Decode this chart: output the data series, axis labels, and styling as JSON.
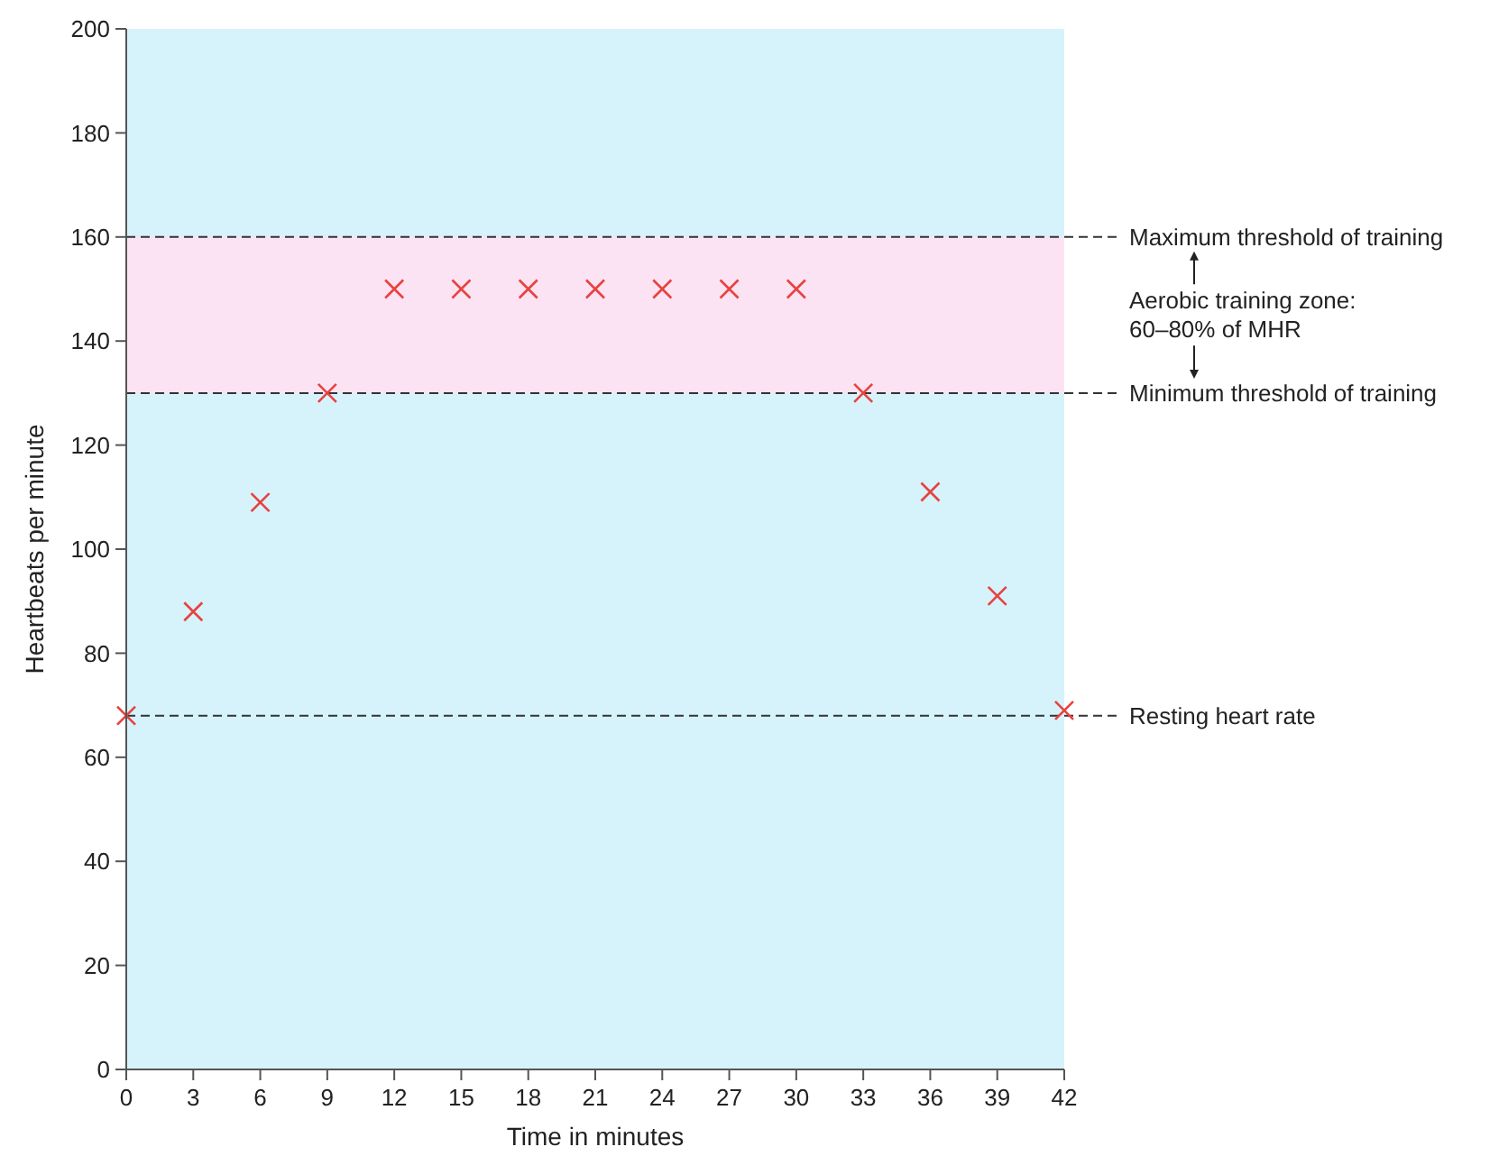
{
  "chart_data": {
    "type": "scatter",
    "xlabel": "Time in minutes",
    "ylabel": "Heartbeats per minute",
    "x": [
      0,
      3,
      6,
      9,
      12,
      15,
      18,
      21,
      24,
      27,
      30,
      33,
      36,
      39,
      42
    ],
    "series": [
      {
        "color": "#e8423f",
        "values": [
          68,
          88,
          109,
          130,
          150,
          150,
          150,
          150,
          150,
          150,
          150,
          130,
          111,
          91,
          69
        ]
      }
    ],
    "xlim": [
      0,
      42
    ],
    "xticks": [
      0,
      3,
      6,
      9,
      12,
      15,
      18,
      21,
      24,
      27,
      30,
      33,
      36,
      39,
      42
    ],
    "ylim": [
      0,
      200
    ],
    "yticks": [
      0,
      20,
      40,
      60,
      80,
      100,
      120,
      140,
      160,
      180,
      200
    ],
    "marker": "cross",
    "grid": false,
    "ref_lines": [
      {
        "axis": "y",
        "value": 160,
        "label": "Maximum threshold of training",
        "line_style": "dashed",
        "color": "#333333"
      },
      {
        "axis": "y",
        "value": 130,
        "label": "Minimum threshold of training",
        "line_style": "dashed",
        "color": "#333333"
      },
      {
        "axis": "y",
        "value": 68,
        "label": "Resting heart rate",
        "line_style": "dashed",
        "color": "#333333"
      }
    ],
    "bands": [
      {
        "axis": "y",
        "from": 130,
        "to": 160,
        "label": "Aerobic training zone: 60–80% of MHR",
        "color": "#fbe3f3"
      }
    ]
  }
}
